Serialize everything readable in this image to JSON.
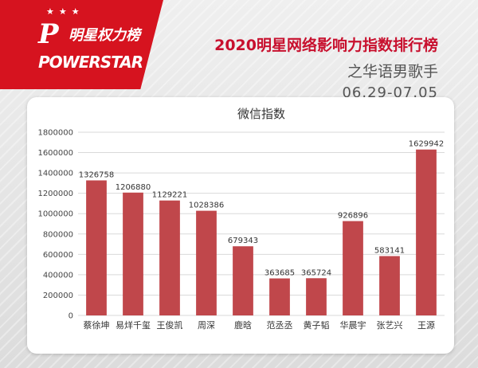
{
  "brand": {
    "logo_cn": "明星权力榜",
    "logo_en": "POWERSTAR",
    "logo_mark": "P",
    "accent_color": "#d6131f"
  },
  "header": {
    "title": "2020明星网络影响力指数排行榜",
    "subtitle": "之华语男歌手",
    "date_range": "06.29-07.05"
  },
  "chart_data": {
    "type": "bar",
    "title": "微信指数",
    "categories": [
      "蔡徐坤",
      "易烊千玺",
      "王俊凯",
      "周深",
      "鹿晗",
      "范丞丞",
      "黄子韬",
      "华晨宇",
      "张艺兴",
      "王源"
    ],
    "values": [
      1326758,
      1206880,
      1129221,
      1028386,
      679343,
      363685,
      365724,
      926896,
      583141,
      1629942
    ],
    "ylim": [
      0,
      1800000
    ],
    "yticks": [
      0,
      200000,
      400000,
      600000,
      800000,
      1000000,
      1200000,
      1400000,
      1600000,
      1800000
    ],
    "bar_color": "#c0474b",
    "grid": true,
    "legend": "none"
  }
}
